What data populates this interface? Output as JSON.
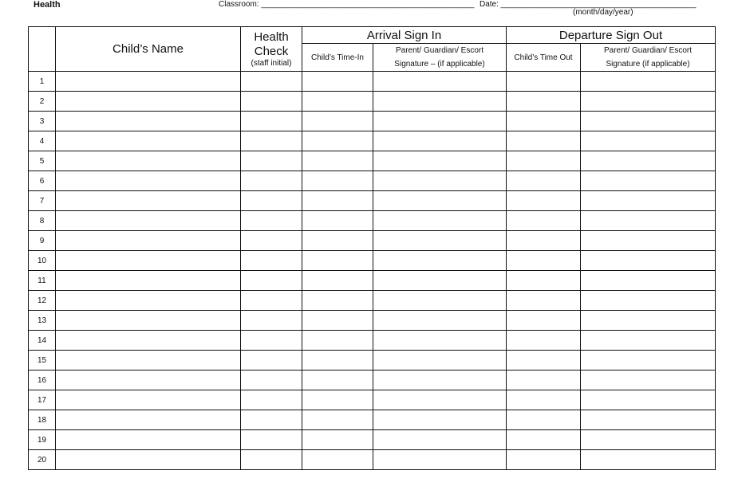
{
  "header": {
    "org": "Health",
    "classroom_label": "Classroom: ________________________________________________",
    "date_label": "Date: ____________________________________________",
    "date_hint": "(month/day/year)"
  },
  "table": {
    "child_name": "Child’s Name",
    "health_check": "Health Check",
    "health_sub": "(staff initial)",
    "arrival": "Arrival Sign In",
    "departure": "Departure Sign Out",
    "time_in": "Child’s Time-In",
    "arrival_sig": "Parent/ Guardian/ Escort Signature – (if applicable)",
    "time_out": "Child’s Time Out",
    "departure_sig": "Parent/ Guardian/ Escort Signature (if applicable)",
    "rows": [
      "1",
      "2",
      "3",
      "4",
      "5",
      "6",
      "7",
      "8",
      "9",
      "10",
      "11",
      "12",
      "13",
      "14",
      "15",
      "16",
      "17",
      "18",
      "19",
      "20"
    ]
  }
}
